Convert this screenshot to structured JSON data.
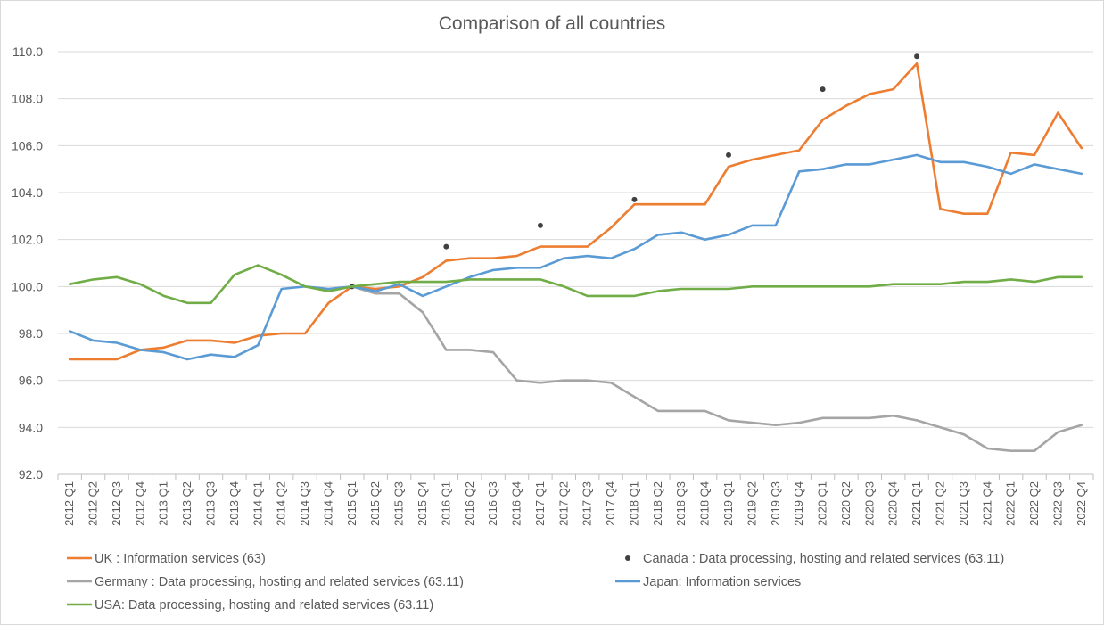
{
  "chart_data": {
    "type": "line",
    "title": "Comparison of all countries",
    "xlabel": "",
    "ylabel": "",
    "ylim": [
      92.0,
      110.0
    ],
    "yticks": [
      "92.0",
      "94.0",
      "96.0",
      "98.0",
      "100.0",
      "102.0",
      "104.0",
      "106.0",
      "108.0",
      "110.0"
    ],
    "grid": true,
    "legend_position": "bottom",
    "categories": [
      "2012 Q1",
      "2012 Q2",
      "2012 Q3",
      "2012 Q4",
      "2013 Q1",
      "2013 Q2",
      "2013 Q3",
      "2013 Q4",
      "2014 Q1",
      "2014 Q2",
      "2014 Q3",
      "2014 Q4",
      "2015 Q1",
      "2015 Q2",
      "2015 Q3",
      "2015 Q4",
      "2016 Q1",
      "2016 Q2",
      "2016 Q3",
      "2016 Q4",
      "2017 Q1",
      "2017 Q2",
      "2017 Q3",
      "2017 Q4",
      "2018 Q1",
      "2018 Q2",
      "2018 Q3",
      "2018 Q4",
      "2019 Q1",
      "2019 Q2",
      "2019 Q3",
      "2019 Q4",
      "2020 Q1",
      "2020 Q2",
      "2020 Q3",
      "2020 Q4",
      "2021 Q1",
      "2021 Q2",
      "2021 Q3",
      "2021 Q4",
      "2022 Q1",
      "2022 Q2",
      "2022 Q3",
      "2022 Q4"
    ],
    "series": [
      {
        "name": "UK : Information services (63)",
        "style": "line",
        "color": "#ed7d31",
        "values": [
          96.9,
          96.9,
          96.9,
          97.3,
          97.4,
          97.7,
          97.7,
          97.6,
          97.9,
          98.0,
          98.0,
          99.3,
          100.0,
          99.9,
          100.0,
          100.4,
          101.1,
          101.2,
          101.2,
          101.3,
          101.7,
          101.7,
          101.7,
          102.5,
          103.5,
          103.5,
          103.5,
          103.5,
          105.1,
          105.4,
          105.6,
          105.8,
          107.1,
          107.7,
          108.2,
          108.4,
          109.5,
          103.3,
          103.1,
          103.1,
          105.7,
          105.6,
          107.4,
          105.9
        ]
      },
      {
        "name": "Canada : Data processing, hosting and related services (63.11)",
        "style": "marker",
        "color": "#404040",
        "values": [
          null,
          null,
          null,
          null,
          null,
          null,
          null,
          null,
          null,
          null,
          null,
          null,
          100.0,
          null,
          null,
          null,
          101.7,
          null,
          null,
          null,
          102.6,
          null,
          null,
          null,
          103.7,
          null,
          null,
          null,
          105.6,
          null,
          null,
          null,
          108.4,
          null,
          null,
          null,
          109.8,
          null,
          null,
          null,
          null,
          null,
          null,
          null
        ]
      },
      {
        "name": "Germany : Data processing, hosting and related services (63.11)",
        "style": "line",
        "color": "#a5a5a5",
        "values": [
          null,
          null,
          null,
          null,
          null,
          null,
          null,
          null,
          null,
          null,
          null,
          null,
          100.0,
          99.7,
          99.7,
          98.9,
          97.3,
          97.3,
          97.2,
          96.0,
          95.9,
          96.0,
          96.0,
          95.9,
          95.3,
          94.7,
          94.7,
          94.7,
          94.3,
          94.2,
          94.1,
          94.2,
          94.4,
          94.4,
          94.4,
          94.5,
          94.3,
          94.0,
          93.7,
          93.1,
          93.0,
          93.0,
          93.8,
          94.1
        ]
      },
      {
        "name": "Japan: Information services",
        "style": "line",
        "color": "#5b9bd5",
        "values": [
          98.1,
          97.7,
          97.6,
          97.3,
          97.2,
          96.9,
          97.1,
          97.0,
          97.5,
          99.9,
          100.0,
          99.9,
          100.0,
          99.8,
          100.1,
          99.6,
          100.0,
          100.4,
          100.7,
          100.8,
          100.8,
          101.2,
          101.3,
          101.2,
          101.6,
          102.2,
          102.3,
          102.0,
          102.2,
          102.6,
          102.6,
          104.9,
          105.0,
          105.2,
          105.2,
          105.4,
          105.6,
          105.3,
          105.3,
          105.1,
          104.8,
          105.2,
          105.0,
          104.8
        ]
      },
      {
        "name": "USA: Data processing, hosting and related services (63.11)",
        "style": "line",
        "color": "#70ad47",
        "values": [
          100.1,
          100.3,
          100.4,
          100.1,
          99.6,
          99.3,
          99.3,
          100.5,
          100.9,
          100.5,
          100.0,
          99.8,
          100.0,
          100.1,
          100.2,
          100.2,
          100.2,
          100.3,
          100.3,
          100.3,
          100.3,
          100.0,
          99.6,
          99.6,
          99.6,
          99.8,
          99.9,
          99.9,
          99.9,
          100.0,
          100.0,
          100.0,
          100.0,
          100.0,
          100.0,
          100.1,
          100.1,
          100.1,
          100.2,
          100.2,
          100.3,
          100.2,
          100.4,
          100.4
        ]
      }
    ]
  }
}
